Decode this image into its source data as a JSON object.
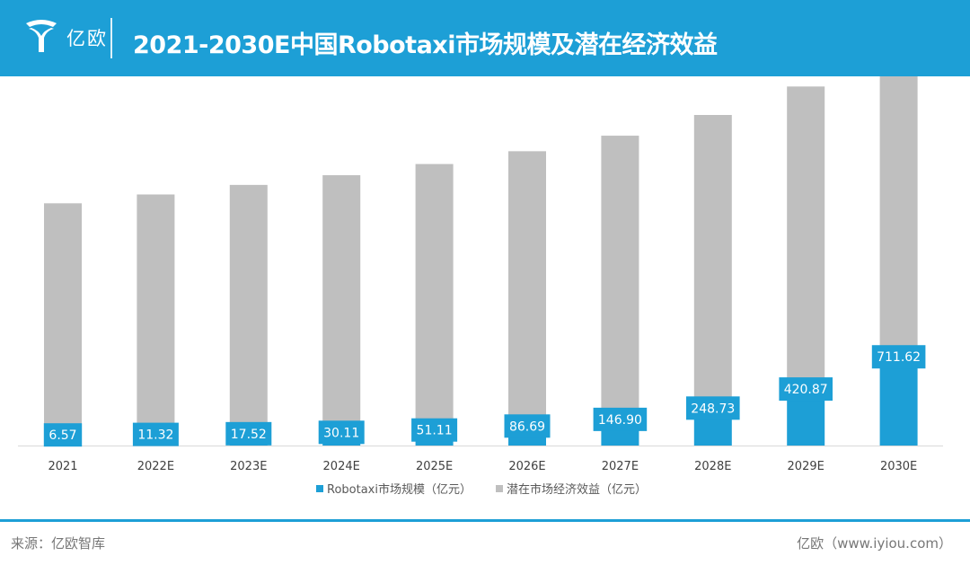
{
  "header": {
    "logo_text": "亿欧",
    "title": "2021-2030E中国Robotaxi市场规模及潜在经济效益"
  },
  "chart_data": {
    "type": "bar",
    "categories": [
      "2021",
      "2022E",
      "2023E",
      "2024E",
      "2025E",
      "2026E",
      "2027E",
      "2028E",
      "2029E",
      "2030E"
    ],
    "series": [
      {
        "name": "Robotaxi市场规模（亿元）",
        "values": [
          6.57,
          11.32,
          17.52,
          30.11,
          51.11,
          86.69,
          146.9,
          248.73,
          420.87,
          711.62
        ],
        "labels": [
          "6.57",
          "11.32",
          "17.52",
          "30.11",
          "51.11",
          "86.69",
          "146.90",
          "248.73",
          "420.87",
          "711.62"
        ]
      },
      {
        "name": "潜在市场经济效益（亿元）",
        "values": [
          2180,
          2255,
          2335,
          2410,
          2490,
          2570,
          2650,
          2735,
          2820,
          2905
        ]
      }
    ],
    "ylim": [
      0,
      3000
    ],
    "grid": false,
    "legend_position": "bottom"
  },
  "colors": {
    "primary": "#1d9fd6",
    "secondary": "#bfbfbf",
    "label_text": "#ffffff",
    "axis_text": "#404040"
  },
  "footer": {
    "source": "来源：亿欧智库",
    "credit": "亿欧（www.iyiou.com）"
  }
}
